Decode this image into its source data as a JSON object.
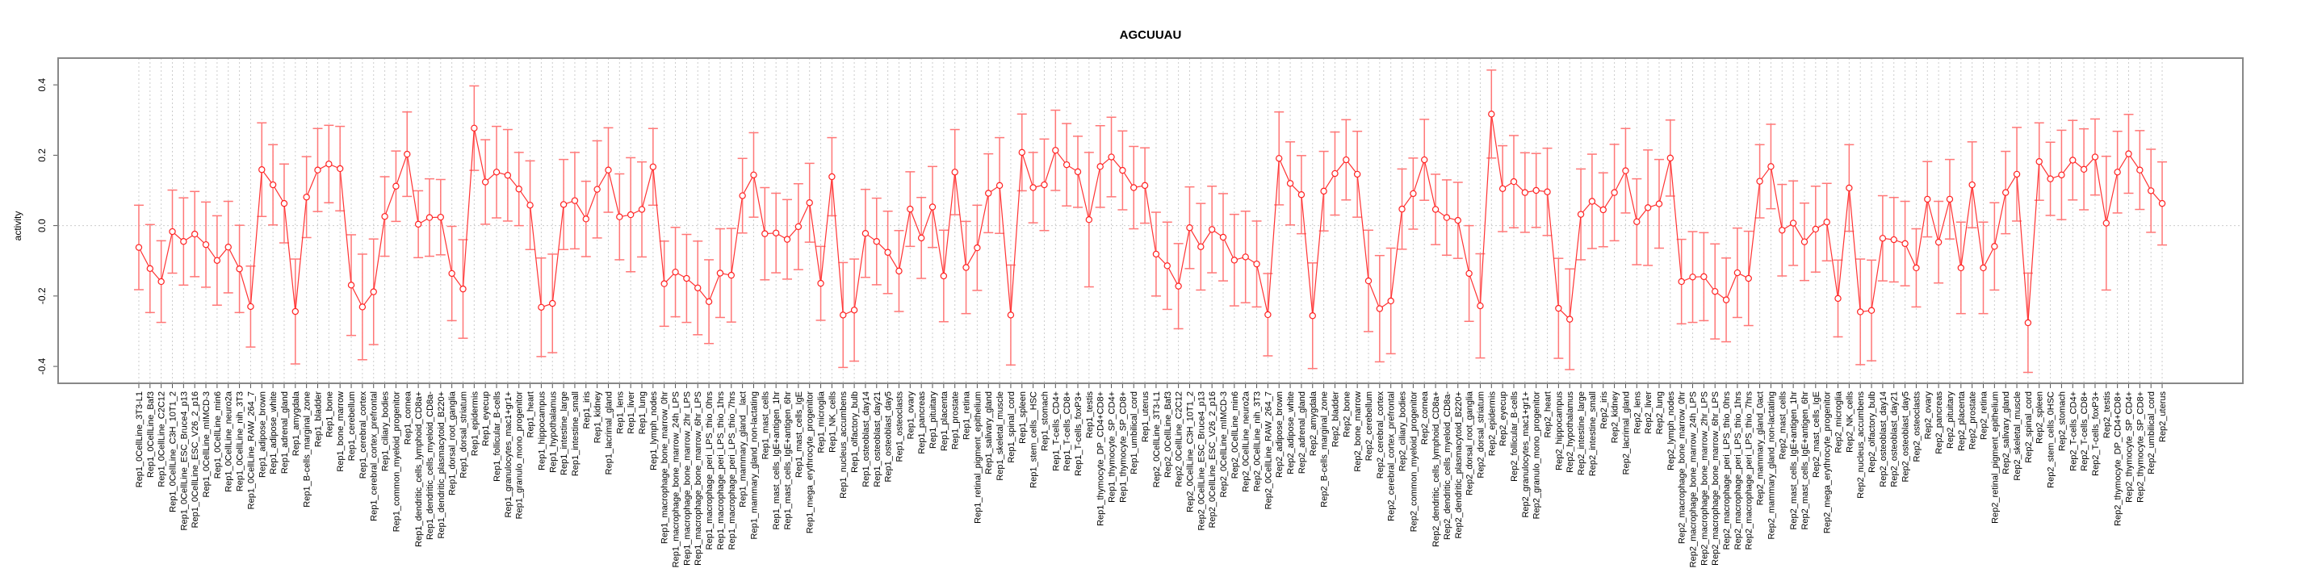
{
  "chart_data": {
    "type": "line",
    "title": "AGCUUAU",
    "xlabel": "",
    "ylabel": "activity",
    "ylim": [
      -0.448,
      0.476
    ],
    "yticks": [
      -0.4,
      -0.2,
      0.0,
      0.2,
      0.4
    ],
    "ytick_labels": [
      "-0.4",
      "-0.2",
      "0.0",
      "0.2",
      "0.4"
    ],
    "grid": "vertical dotted at each category, dotted horizontal at 0",
    "legend": "none",
    "colors": {
      "line": "#ff3333",
      "errorbar": "#ff7777",
      "point": "#ff2222",
      "axis": "#808080",
      "grid": "#cccccc"
    },
    "categories": [
      "Rep1_0CellLine_3T3-L1",
      "Rep1_0CellLine_Baf3",
      "Rep1_0CellLine_C2C12",
      "Rep1_0CellLine_C3H_10T1_2",
      "Rep1_0CellLine_ESC_Bruce4_p13",
      "Rep1_0CellLine_ESC_V26_2_p16",
      "Rep1_0CellLine_mIMCD-3",
      "Rep1_0CellLine_min6",
      "Rep1_0CellLine_neuro2a",
      "Rep1_0CellLine_nih_3T3",
      "Rep1_0CellLine_RAW_264_7",
      "Rep1_adipose_brown",
      "Rep1_adipose_white",
      "Rep1_adrenal_gland",
      "Rep1_amygdala",
      "Rep1_B-cells_marginal_zone",
      "Rep1_bladder",
      "Rep1_bone",
      "Rep1_bone_marrow",
      "Rep1_cerebellum",
      "Rep1_cerebral_cortex",
      "Rep1_cerebral_cortex_prefrontal",
      "Rep1_ciliary_bodies",
      "Rep1_common_myeloid_progenitor",
      "Rep1_cornea",
      "Rep1_dendritic_cells_lymphoid_CD8a+",
      "Rep1_dendritic_cells_myeloid_CD8a-",
      "Rep1_dendritic_plasmacytoid_B220+",
      "Rep1_dorsal_root_ganglia",
      "Rep1_dorsal_striatum",
      "Rep1_epidermis",
      "Rep1_eyecup",
      "Rep1_follicular_B-cells",
      "Rep1_granulocytes_mac1+gr1+",
      "Rep1_granulo_mono_progenitor",
      "Rep1_heart",
      "Rep1_hippocampus",
      "Rep1_hypothalamus",
      "Rep1_intestine_large",
      "Rep1_intestine_small",
      "Rep1_iris",
      "Rep1_kidney",
      "Rep1_lacrimal_gland",
      "Rep1_lens",
      "Rep1_liver",
      "Rep1_lung",
      "Rep1_lymph_nodes",
      "Rep1_macrophage_bone_marrow_0hr",
      "Rep1_macrophage_bone_marrow_24h_LPS",
      "Rep1_macrophage_bone_marrow_2hr_LPS",
      "Rep1_macrophage_bone_marrow_6hr_LPS",
      "Rep1_macrophage_peri_LPS_thio_0hrs",
      "Rep1_macrophage_peri_LPS_thio_1hrs",
      "Rep1_macrophage_peri_LPS_thio_7hrs",
      "Rep1_mammary_gland__lact",
      "Rep1_mammary_gland_non-lactating",
      "Rep1_mast_cells",
      "Rep1_mast_cells_IgE+antigen_1hr",
      "Rep1_mast_cells_IgE+antigen_6hr",
      "Rep1_mast_cells_IgE",
      "Rep1_mega_erythrocyte_progenitor",
      "Rep1_microglia",
      "Rep1_NK_cells",
      "Rep1_nucleus_accumbens",
      "Rep1_olfactory_bulb",
      "Rep1_osteoblast_day14",
      "Rep1_osteoblast_day21",
      "Rep1_osteoblast_day5",
      "Rep1_osteoclasts",
      "Rep1_ovary",
      "Rep1_pancreas",
      "Rep1_pituitary",
      "Rep1_placenta",
      "Rep1_prostate",
      "Rep1_retina",
      "Rep1_retinal_pigment_epithelium",
      "Rep1_salivary_gland",
      "Rep1_skeletal_muscle",
      "Rep1_spinal_cord",
      "Rep1_spleen",
      "Rep1_stem_cells__HSC",
      "Rep1_stomach",
      "Rep1_T-cells_CD4+",
      "Rep1_T-cells_CD8+",
      "Rep1_T-cells_foxP3+",
      "Rep1_testis",
      "Rep1_thymocyte_DP_CD4+CD8+",
      "Rep1_thymocyte_SP_CD4+",
      "Rep1_thymocyte_SP_CD8+",
      "Rep1_umbilical_cord",
      "Rep1_uterus",
      "Rep2_0CellLine_3T3-L1",
      "Rep2_0CellLine_Baf3",
      "Rep2_0CellLine_C2C12",
      "Rep2_0CellLine_C3H_10T1_2",
      "Rep2_0CellLine_ESC_Bruce4_p13",
      "Rep2_0CellLine_ESC_V26_2_p16",
      "Rep2_0CellLine_mIMCD-3",
      "Rep2_0CellLine_min6",
      "Rep2_0CellLine_neuro2a",
      "Rep2_0CellLine_nih_3T3",
      "Rep2_0CellLine_RAW_264_7",
      "Rep2_adipose_brown",
      "Rep2_adipose_white",
      "Rep2_adrenal_gland",
      "Rep2_amygdala",
      "Rep2_B-cells_marginal_zone",
      "Rep2_bladder",
      "Rep2_bone",
      "Rep2_bone_marrow",
      "Rep2_cerebellum",
      "Rep2_cerebral_cortex",
      "Rep2_cerebral_cortex_prefrontal",
      "Rep2_ciliary_bodies",
      "Rep2_common_myeloid_progenitor",
      "Rep2_cornea",
      "Rep2_dendritic_cells_lymphoid_CD8a+",
      "Rep2_dendritic_cells_myeloid_CD8a-",
      "Rep2_dendritic_plasmacytoid_B220+",
      "Rep2_dorsal_root_ganglia",
      "Rep2_dorsal_striatum",
      "Rep2_epidermis",
      "Rep2_eyecup",
      "Rep2_follicular_B-cells",
      "Rep2_granulocytes_mac1+gr1+",
      "Rep2_granulo_mono_progenitor",
      "Rep2_heart",
      "Rep2_hippocampus",
      "Rep2_hypothalamus",
      "Rep2_intestine_large",
      "Rep2_intestine_small",
      "Rep2_iris",
      "Rep2_kidney",
      "Rep2_lacrimal_gland",
      "Rep2_lens",
      "Rep2_liver",
      "Rep2_lung",
      "Rep2_lymph_nodes",
      "Rep2_macrophage_bone_marrow_0hr",
      "Rep2_macrophage_bone_marrow_24h_LPS",
      "Rep2_macrophage_bone_marrow_2hr_LPS",
      "Rep2_macrophage_bone_marrow_6hr_LPS",
      "Rep2_macrophage_peri_LPS_thio_0hrs",
      "Rep2_macrophage_peri_LPS_thio_1hrs",
      "Rep2_macrophage_peri_LPS_thio_7hrs",
      "Rep2_mammary_gland_0act",
      "Rep2_mammary_gland_non-lactating",
      "Rep2_mast_cells",
      "Rep2_mast_cells_IgE+antigen_1hr",
      "Rep2_mast_cells_IgE+antigen_6hr",
      "Rep2_mast_cells_IgE",
      "Rep2_mega_erythrocyte_progenitor",
      "Rep2_microglia",
      "Rep2_NK_cells",
      "Rep2_nucleus_accumbens",
      "Rep2_olfactory_bulb",
      "Rep2_osteoblast_day14",
      "Rep2_osteoblast_day21",
      "Rep2_osteoblast_day5",
      "Rep2_osteoclasts",
      "Rep2_ovary",
      "Rep2_pancreas",
      "Rep2_pituitary",
      "Rep2_placenta",
      "Rep2_prostate",
      "Rep2_retina",
      "Rep2_retinal_pigment_epithelium",
      "Rep2_salivary_gland",
      "Rep2_skeletal_muscle",
      "Rep2_spinal_cord",
      "Rep2_spleen",
      "Rep2_stem_cells_0HSC",
      "Rep2_stomach",
      "Rep2_T-cells_CD4+",
      "Rep2_T-cells_CD8+",
      "Rep2_T-cells_foxP3+",
      "Rep2_testis",
      "Rep2_thymocyte_DP_CD4+CD8+",
      "Rep2_thymocyte_SP_CD4+",
      "Rep2_thymocyte_SP_CD8+",
      "Rep2_umbilical_cord",
      "Rep2_uterus"
    ],
    "series": [
      {
        "name": "activity",
        "values": [
          -0.062,
          -0.122,
          -0.159,
          -0.017,
          -0.045,
          -0.024,
          -0.054,
          -0.099,
          -0.061,
          -0.123,
          -0.23,
          0.159,
          0.116,
          0.063,
          -0.244,
          0.081,
          0.158,
          0.175,
          0.162,
          -0.169,
          -0.231,
          -0.188,
          0.026,
          0.112,
          0.203,
          0.004,
          0.023,
          0.024,
          -0.136,
          -0.18,
          0.277,
          0.124,
          0.152,
          0.143,
          0.104,
          0.058,
          -0.232,
          -0.221,
          0.06,
          0.071,
          0.019,
          0.103,
          0.158,
          0.025,
          0.031,
          0.046,
          0.167,
          -0.165,
          -0.132,
          -0.15,
          -0.177,
          -0.216,
          -0.135,
          -0.141,
          0.085,
          0.144,
          -0.023,
          -0.021,
          -0.039,
          -0.003,
          0.065,
          -0.164,
          0.139,
          -0.254,
          -0.24,
          -0.022,
          -0.045,
          -0.076,
          -0.129,
          0.047,
          -0.035,
          0.053,
          -0.143,
          0.152,
          -0.119,
          -0.063,
          0.092,
          0.114,
          -0.254,
          0.208,
          0.108,
          0.116,
          0.214,
          0.173,
          0.153,
          0.017,
          0.168,
          0.195,
          0.157,
          0.108,
          0.114,
          -0.081,
          -0.114,
          -0.172,
          -0.006,
          -0.06,
          -0.011,
          -0.033,
          -0.098,
          -0.089,
          -0.109,
          -0.253,
          0.191,
          0.12,
          0.088,
          -0.256,
          0.098,
          0.148,
          0.187,
          0.146,
          -0.157,
          -0.236,
          -0.214,
          0.047,
          0.091,
          0.187,
          0.046,
          0.023,
          0.015,
          -0.136,
          -0.228,
          0.317,
          0.105,
          0.125,
          0.094,
          0.1,
          0.096,
          -0.235,
          -0.266,
          0.032,
          0.069,
          0.045,
          0.094,
          0.156,
          0.011,
          0.051,
          0.062,
          0.192,
          -0.159,
          -0.146,
          -0.145,
          -0.187,
          -0.211,
          -0.134,
          -0.15,
          0.126,
          0.168,
          -0.013,
          0.007,
          -0.046,
          -0.01,
          0.01,
          -0.207,
          0.107,
          -0.245,
          -0.241,
          -0.036,
          -0.04,
          -0.051,
          -0.12,
          0.075,
          -0.047,
          0.075,
          -0.12,
          0.116,
          -0.12,
          -0.059,
          0.094,
          0.146,
          -0.276,
          0.182,
          0.133,
          0.144,
          0.186,
          0.16,
          0.195,
          0.007,
          0.152,
          0.204,
          0.158,
          0.099,
          0.063
        ],
        "error": [
          0.12,
          0.125,
          0.116,
          0.118,
          0.124,
          0.121,
          0.121,
          0.127,
          0.13,
          0.124,
          0.115,
          0.133,
          0.114,
          0.112,
          0.149,
          0.115,
          0.118,
          0.11,
          0.12,
          0.143,
          0.15,
          0.15,
          0.113,
          0.1,
          0.12,
          0.095,
          0.11,
          0.107,
          0.134,
          0.14,
          0.12,
          0.12,
          0.13,
          0.13,
          0.104,
          0.126,
          0.14,
          0.14,
          0.128,
          0.137,
          0.107,
          0.138,
          0.12,
          0.122,
          0.162,
          0.135,
          0.109,
          0.121,
          0.127,
          0.125,
          0.133,
          0.119,
          0.126,
          0.133,
          0.106,
          0.12,
          0.131,
          0.113,
          0.113,
          0.122,
          0.112,
          0.105,
          0.111,
          0.149,
          0.145,
          0.125,
          0.123,
          0.117,
          0.115,
          0.106,
          0.115,
          0.115,
          0.13,
          0.121,
          0.131,
          0.121,
          0.112,
          0.136,
          0.142,
          0.109,
          0.1,
          0.13,
          0.114,
          0.117,
          0.101,
          0.191,
          0.116,
          0.113,
          0.112,
          0.117,
          0.107,
          0.119,
          0.124,
          0.121,
          0.116,
          0.123,
          0.123,
          0.124,
          0.13,
          0.13,
          0.122,
          0.117,
          0.132,
          0.118,
          0.111,
          0.15,
          0.113,
          0.118,
          0.114,
          0.122,
          0.144,
          0.151,
          0.15,
          0.114,
          0.101,
          0.115,
          0.1,
          0.107,
          0.108,
          0.136,
          0.148,
          0.125,
          0.122,
          0.131,
          0.113,
          0.105,
          0.124,
          0.142,
          0.143,
          0.129,
          0.134,
          0.105,
          0.137,
          0.12,
          0.122,
          0.164,
          0.126,
          0.108,
          0.12,
          0.129,
          0.125,
          0.135,
          0.119,
          0.127,
          0.134,
          0.104,
          0.12,
          0.13,
          0.12,
          0.11,
          0.122,
          0.11,
          0.109,
          0.123,
          0.15,
          0.143,
          0.121,
          0.12,
          0.12,
          0.111,
          0.107,
          0.116,
          0.113,
          0.13,
          0.122,
          0.13,
          0.124,
          0.117,
          0.133,
          0.141,
          0.11,
          0.104,
          0.127,
          0.113,
          0.115,
          0.108,
          0.19,
          0.116,
          0.112,
          0.112,
          0.118,
          0.118
        ]
      }
    ]
  }
}
